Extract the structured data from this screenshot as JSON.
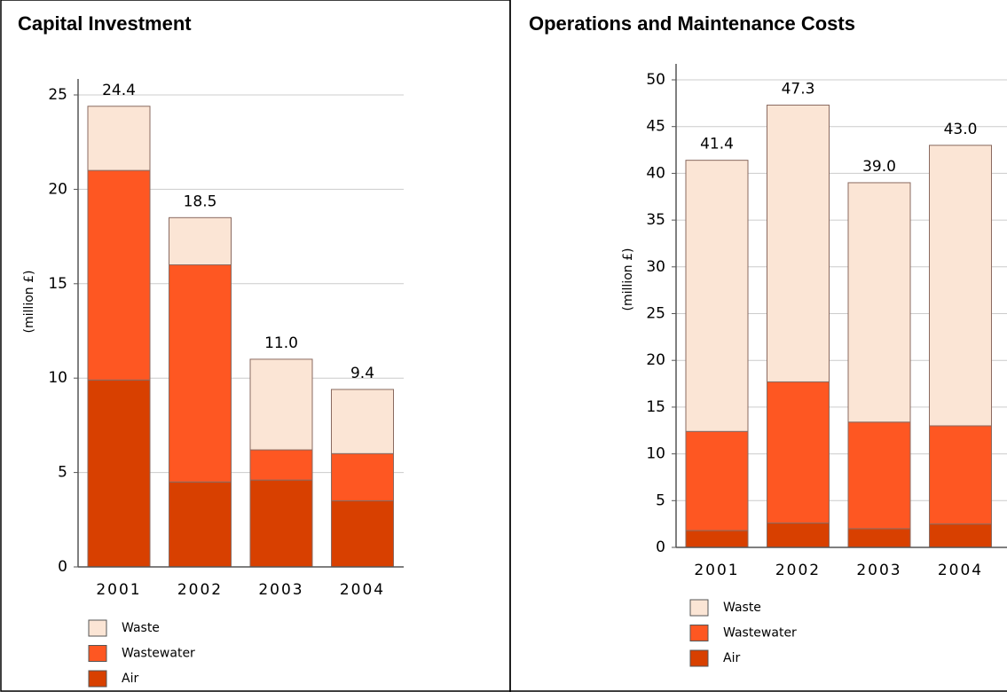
{
  "chart_data": [
    {
      "type": "stacked_bar",
      "title": "Capital Investment",
      "y_label": "(million £)",
      "categories": [
        "2001",
        "2002",
        "2003",
        "2004"
      ],
      "series": [
        {
          "name": "Air",
          "color": "#d84000",
          "values": [
            9.9,
            4.5,
            4.6,
            3.5
          ]
        },
        {
          "name": "Wastewater",
          "color": "#fe5722",
          "values": [
            11.1,
            11.5,
            1.6,
            2.5
          ]
        },
        {
          "name": "Waste",
          "color": "#fbe5d5",
          "values": [
            3.4,
            2.5,
            4.8,
            3.4
          ]
        }
      ],
      "total_labels": [
        "24.4",
        "18.5",
        "11.0",
        "9.4"
      ],
      "ylim": [
        0,
        25
      ],
      "yticks": [
        0,
        5,
        10,
        15,
        20,
        25
      ],
      "grid": true
    },
    {
      "type": "stacked_bar",
      "title": "Operations and Maintenance Costs",
      "y_label": "(million £)",
      "categories": [
        "2001",
        "2002",
        "2003",
        "2004"
      ],
      "series": [
        {
          "name": "Air",
          "color": "#d84000",
          "values": [
            1.8,
            2.6,
            2.0,
            2.5
          ]
        },
        {
          "name": "Wastewater",
          "color": "#fe5722",
          "values": [
            10.6,
            15.1,
            11.4,
            10.5
          ]
        },
        {
          "name": "Waste",
          "color": "#fbe5d5",
          "values": [
            29.0,
            29.6,
            25.6,
            30.0
          ]
        }
      ],
      "total_labels": [
        "41.4",
        "47.3",
        "39.0",
        "43.0"
      ],
      "ylim": [
        0,
        50
      ],
      "yticks": [
        0,
        5,
        10,
        15,
        20,
        25,
        30,
        35,
        40,
        45,
        50
      ],
      "grid": true
    }
  ]
}
